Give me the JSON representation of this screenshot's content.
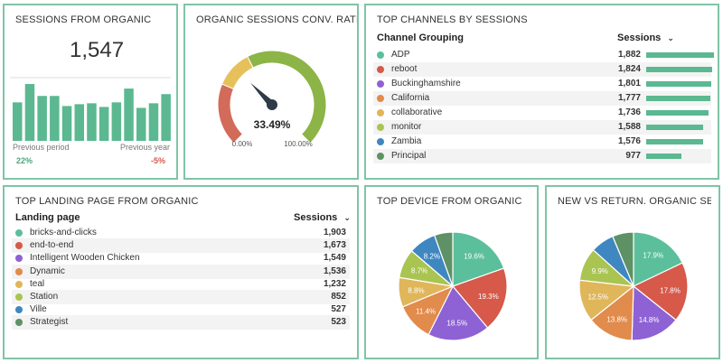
{
  "colors": {
    "border": "#7fc4a6",
    "bar": "#5bb891",
    "teal": "#5bbf9b",
    "red": "#d6594a",
    "purple": "#8e62d4",
    "orange": "#e18b4c",
    "gold": "#e0b65a",
    "lime": "#a9c451",
    "blue": "#3f87c1",
    "green": "#5e9165",
    "gauge_red": "#d36b5a",
    "gauge_yellow": "#e6c05a",
    "gauge_green": "#8cb447"
  },
  "sessions_from_organic": {
    "title": "SESSIONS FROM ORGANIC",
    "value": "1,547",
    "previous_period_label": "Previous period",
    "previous_year_label": "Previous year",
    "previous_period_change": "22%",
    "previous_year_change": "-5%",
    "chart_data": {
      "type": "bar",
      "values": [
        42,
        62,
        49,
        49,
        38,
        40,
        41,
        37,
        42,
        57,
        36,
        41,
        51
      ]
    }
  },
  "conv_rate": {
    "title": "ORGANIC SESSIONS CONV. RATE",
    "value_label": "33.49%",
    "value": 33.49,
    "min_label": "0.00%",
    "max_label": "100.00%",
    "chart_data": {
      "type": "gauge",
      "value": 33.49,
      "min": 0,
      "max": 100,
      "bands": [
        {
          "from": 0,
          "to": 25,
          "color": "#d36b5a"
        },
        {
          "from": 25,
          "to": 40,
          "color": "#e6c05a"
        },
        {
          "from": 40,
          "to": 100,
          "color": "#8cb447"
        }
      ]
    }
  },
  "top_channels": {
    "title": "TOP CHANNELS BY SESSIONS",
    "col_label": "Channel Grouping",
    "sort_label": "Sessions",
    "rows": [
      {
        "label": "ADP",
        "value": "1,882",
        "num": 1882,
        "color": "#5bbf9b"
      },
      {
        "label": "reboot",
        "value": "1,824",
        "num": 1824,
        "color": "#d6594a"
      },
      {
        "label": "Buckinghamshire",
        "value": "1,801",
        "num": 1801,
        "color": "#8e62d4"
      },
      {
        "label": "California",
        "value": "1,777",
        "num": 1777,
        "color": "#e18b4c"
      },
      {
        "label": "collaborative",
        "value": "1,736",
        "num": 1736,
        "color": "#e0b65a"
      },
      {
        "label": "monitor",
        "value": "1,588",
        "num": 1588,
        "color": "#a9c451"
      },
      {
        "label": "Zambia",
        "value": "1,576",
        "num": 1576,
        "color": "#3f87c1"
      },
      {
        "label": "Principal",
        "value": "977",
        "num": 977,
        "color": "#5e9165"
      }
    ]
  },
  "top_landing": {
    "title": "TOP LANDING PAGE FROM ORGANIC",
    "col_label": "Landing page",
    "sort_label": "Sessions",
    "rows": [
      {
        "label": "bricks-and-clicks",
        "value": "1,903",
        "color": "#5bbf9b"
      },
      {
        "label": "end-to-end",
        "value": "1,673",
        "color": "#d6594a"
      },
      {
        "label": "Intelligent Wooden Chicken",
        "value": "1,549",
        "color": "#8e62d4"
      },
      {
        "label": "Dynamic",
        "value": "1,536",
        "color": "#e18b4c"
      },
      {
        "label": "teal",
        "value": "1,232",
        "color": "#e0b65a"
      },
      {
        "label": "Station",
        "value": "852",
        "color": "#a9c451"
      },
      {
        "label": "Ville",
        "value": "527",
        "color": "#3f87c1"
      },
      {
        "label": "Strategist",
        "value": "523",
        "color": "#5e9165"
      }
    ]
  },
  "top_device": {
    "title": "TOP DEVICE FROM ORGANIC",
    "chart_data": {
      "type": "pie",
      "slices": [
        {
          "value": 19.6,
          "label": "19.6%",
          "color": "#5bbf9b"
        },
        {
          "value": 19.3,
          "label": "19.3%",
          "color": "#d6594a"
        },
        {
          "value": 18.5,
          "label": "18.5%",
          "color": "#8e62d4"
        },
        {
          "value": 11.4,
          "label": "11.4%",
          "color": "#e18b4c"
        },
        {
          "value": 8.8,
          "label": "8.8%",
          "color": "#e0b65a"
        },
        {
          "value": 8.7,
          "label": "8.7%",
          "color": "#a9c451"
        },
        {
          "value": 8.2,
          "label": "8.2%",
          "color": "#3f87c1"
        },
        {
          "value": 5.5,
          "label": "",
          "color": "#5e9165"
        }
      ]
    }
  },
  "new_vs_return": {
    "title": "NEW VS RETURN. ORGANIC SESSIONS",
    "chart_data": {
      "type": "pie",
      "slices": [
        {
          "value": 17.9,
          "label": "17.9%",
          "color": "#5bbf9b"
        },
        {
          "value": 17.8,
          "label": "17.8%",
          "color": "#d6594a"
        },
        {
          "value": 14.8,
          "label": "14.8%",
          "color": "#8e62d4"
        },
        {
          "value": 13.8,
          "label": "13.8%",
          "color": "#e18b4c"
        },
        {
          "value": 12.5,
          "label": "12.5%",
          "color": "#e0b65a"
        },
        {
          "value": 9.9,
          "label": "9.9%",
          "color": "#a9c451"
        },
        {
          "value": 7.0,
          "label": "",
          "color": "#3f87c1"
        },
        {
          "value": 6.3,
          "label": "",
          "color": "#5e9165"
        }
      ]
    }
  }
}
